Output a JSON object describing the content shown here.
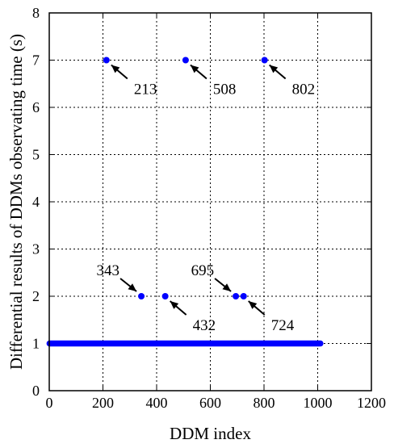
{
  "chart_data": {
    "type": "scatter",
    "xlabel": "DDM index",
    "ylabel": "Differential results of DDMs observating time (s)",
    "xlim": [
      0,
      1200
    ],
    "ylim": [
      0,
      8
    ],
    "xticks": [
      0,
      200,
      400,
      600,
      800,
      1000,
      1200
    ],
    "yticks": [
      0,
      1,
      2,
      3,
      4,
      5,
      6,
      7,
      8
    ],
    "grid": true,
    "marker_color": "#0000ff",
    "baseline": {
      "x_start": 1,
      "x_end": 1010,
      "y": 1
    },
    "outliers": [
      {
        "x": 213,
        "y": 7
      },
      {
        "x": 508,
        "y": 7
      },
      {
        "x": 802,
        "y": 7
      },
      {
        "x": 343,
        "y": 2
      },
      {
        "x": 432,
        "y": 2
      },
      {
        "x": 695,
        "y": 2
      },
      {
        "x": 724,
        "y": 2
      }
    ],
    "annotations": [
      {
        "text": "213",
        "x": 213,
        "y": 7,
        "side": "lower-right"
      },
      {
        "text": "508",
        "x": 508,
        "y": 7,
        "side": "lower-right"
      },
      {
        "text": "802",
        "x": 802,
        "y": 7,
        "side": "lower-right"
      },
      {
        "text": "343",
        "x": 343,
        "y": 2,
        "side": "upper-left"
      },
      {
        "text": "432",
        "x": 432,
        "y": 2,
        "side": "lower-right"
      },
      {
        "text": "695",
        "x": 695,
        "y": 2,
        "side": "upper-left"
      },
      {
        "text": "724",
        "x": 724,
        "y": 2,
        "side": "lower-right"
      }
    ]
  }
}
